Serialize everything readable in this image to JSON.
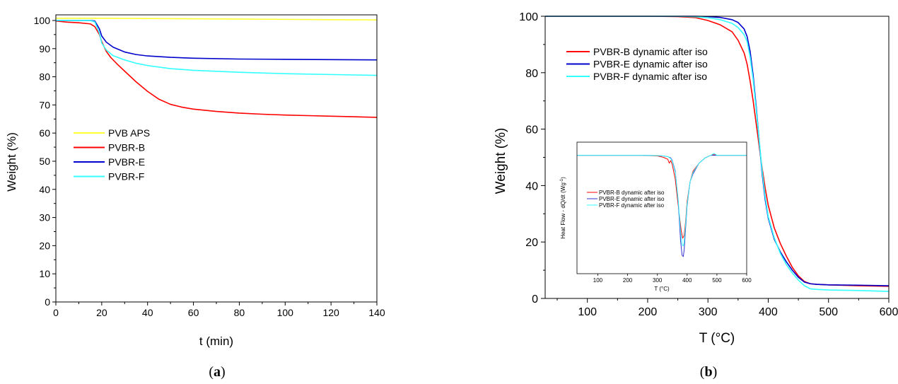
{
  "chart_data": [
    {
      "panel_label": {
        "open": "(",
        "letter": "a",
        "close": ")"
      },
      "type": "line",
      "xlabel": "t (min)",
      "ylabel": "Weight (%)",
      "xlim": [
        0,
        140
      ],
      "ylim": [
        0,
        102
      ],
      "xticks": [
        0,
        20,
        40,
        60,
        80,
        100,
        120,
        140
      ],
      "yticks": [
        0,
        10,
        20,
        30,
        40,
        50,
        60,
        70,
        80,
        90,
        100
      ],
      "legend_position": "center-left",
      "grid": false,
      "series": [
        {
          "name": "PVB APS",
          "color": "#ffff33",
          "x": [
            0,
            20,
            40,
            60,
            80,
            100,
            120,
            140
          ],
          "y": [
            100.8,
            100.8,
            100.7,
            100.6,
            100.5,
            100.4,
            100.3,
            100.2
          ]
        },
        {
          "name": "PVBR-B",
          "color": "#ff0000",
          "x": [
            0,
            5,
            10,
            15,
            17,
            19,
            20,
            22,
            24,
            27,
            30,
            35,
            40,
            45,
            50,
            55,
            60,
            70,
            80,
            90,
            100,
            110,
            120,
            130,
            140
          ],
          "y": [
            99.8,
            99.4,
            99.2,
            98.8,
            97.8,
            95.0,
            92.5,
            89.0,
            86.8,
            84.3,
            82.0,
            78.2,
            74.8,
            72.0,
            70.2,
            69.2,
            68.5,
            67.7,
            67.1,
            66.7,
            66.4,
            66.2,
            66.0,
            65.8,
            65.6
          ]
        },
        {
          "name": "PVBR-E",
          "color": "#0000cc",
          "x": [
            0,
            5,
            10,
            15,
            17,
            19,
            20,
            22,
            25,
            30,
            35,
            40,
            50,
            60,
            80,
            100,
            120,
            140
          ],
          "y": [
            100,
            100,
            100,
            100,
            99.8,
            97.0,
            94.5,
            92.3,
            90.5,
            88.8,
            87.9,
            87.4,
            86.9,
            86.6,
            86.3,
            86.2,
            86.1,
            86.0
          ]
        },
        {
          "name": "PVBR-F",
          "color": "#33ffff",
          "x": [
            0,
            5,
            10,
            15,
            17,
            19,
            20,
            22,
            25,
            30,
            35,
            40,
            50,
            60,
            80,
            100,
            120,
            140
          ],
          "y": [
            100,
            100,
            100,
            100,
            99.5,
            95.5,
            92.0,
            89.5,
            87.5,
            86.0,
            84.8,
            84.0,
            82.9,
            82.3,
            81.6,
            81.1,
            80.8,
            80.5
          ]
        }
      ]
    },
    {
      "panel_label": {
        "open": "(",
        "letter": "b",
        "close": ")"
      },
      "type": "line",
      "xlabel": "T (°C)",
      "ylabel": "Weight (%)",
      "xlim": [
        30,
        600
      ],
      "ylim": [
        0,
        100
      ],
      "xticks": [
        100,
        200,
        300,
        400,
        500,
        600
      ],
      "yticks": [
        0,
        20,
        40,
        60,
        80,
        100
      ],
      "legend_position": "top-left",
      "grid": false,
      "series": [
        {
          "name": "PVBR-B dynamic after iso",
          "color": "#ff0000",
          "x": [
            30,
            100,
            200,
            250,
            280,
            300,
            320,
            340,
            350,
            360,
            365,
            370,
            375,
            380,
            385,
            390,
            395,
            400,
            410,
            420,
            430,
            440,
            450,
            460,
            470,
            480,
            500,
            550,
            600
          ],
          "y": [
            100,
            100,
            100,
            99.9,
            99.5,
            98.5,
            97.0,
            94.5,
            91.5,
            87.0,
            83.0,
            77.0,
            70.0,
            62.0,
            54.0,
            46.0,
            39.0,
            33.0,
            25.0,
            19.5,
            15.0,
            11.0,
            8.0,
            6.0,
            5.2,
            5.0,
            4.8,
            4.5,
            4.3
          ]
        },
        {
          "name": "PVBR-E dynamic after iso",
          "color": "#0000cc",
          "x": [
            30,
            100,
            200,
            250,
            280,
            300,
            320,
            340,
            350,
            360,
            365,
            370,
            375,
            380,
            385,
            390,
            395,
            400,
            410,
            420,
            430,
            440,
            450,
            460,
            470,
            480,
            500,
            550,
            600
          ],
          "y": [
            100,
            100,
            100,
            100,
            100,
            99.9,
            99.6,
            98.8,
            97.8,
            95.5,
            92.8,
            87.5,
            79.0,
            68.0,
            56.0,
            44.0,
            35.0,
            28.5,
            21.0,
            16.5,
            13.0,
            10.0,
            7.5,
            5.8,
            5.2,
            5.0,
            4.8,
            4.7,
            4.5
          ]
        },
        {
          "name": "PVBR-F dynamic after iso",
          "color": "#33ffff",
          "x": [
            30,
            100,
            200,
            250,
            280,
            300,
            320,
            340,
            350,
            360,
            365,
            370,
            375,
            380,
            385,
            390,
            395,
            400,
            410,
            420,
            430,
            440,
            450,
            460,
            470,
            480,
            500,
            550,
            600
          ],
          "y": [
            100,
            100,
            100,
            100,
            99.8,
            99.5,
            98.8,
            97.5,
            96.0,
            93.5,
            91.0,
            85.5,
            77.5,
            67.0,
            56.0,
            45.0,
            36.0,
            29.0,
            21.5,
            16.0,
            12.0,
            9.0,
            6.5,
            4.5,
            3.4,
            3.2,
            3.0,
            2.8,
            2.5
          ]
        }
      ],
      "inset": {
        "type": "line",
        "xlabel": "T (°C)",
        "ylabel_html": {
          "main": "Heat Flow - dQ/dt (Wg",
          "sup": "-1",
          "close": ")"
        },
        "xlim": [
          30,
          600
        ],
        "ylim": [
          0,
          100
        ],
        "xticks": [
          100,
          200,
          300,
          400,
          500,
          600
        ],
        "legend_position": "center-left",
        "series": [
          {
            "name": "PVBR-B dynamic after iso",
            "color": "#ff0000",
            "x": [
              30,
              100,
              200,
              250,
              300,
              320,
              335,
              340,
              345,
              350,
              360,
              370,
              380,
              385,
              390,
              395,
              400,
              410,
              420,
              440,
              460,
              480,
              490,
              500,
              550,
              600
            ],
            "y": [
              90,
              90,
              90,
              90,
              89.5,
              88.5,
              87.0,
              84.0,
              86.0,
              83.0,
              72.0,
              52.0,
              33.0,
              27.0,
              29.0,
              40.0,
              55.0,
              70.0,
              78.0,
              84.0,
              88.0,
              90.0,
              90.5,
              90.0,
              90.0,
              90.0
            ]
          },
          {
            "name": "PVBR-E dynamic after iso",
            "color": "#3333cc",
            "x": [
              30,
              100,
              200,
              250,
              300,
              320,
              335,
              345,
              350,
              360,
              370,
              378,
              383,
              387,
              390,
              395,
              400,
              410,
              420,
              440,
              460,
              480,
              500,
              550,
              600
            ],
            "y": [
              90,
              90,
              90,
              90,
              89.8,
              89.5,
              89.0,
              88.0,
              86.0,
              78.0,
              55.0,
              25.0,
              14.0,
              13.0,
              18.0,
              35.0,
              52.0,
              70.0,
              76.0,
              84.0,
              88.0,
              90.0,
              90.0,
              90.0,
              90.0
            ]
          },
          {
            "name": "PVBR-F dynamic after iso",
            "color": "#33ffff",
            "x": [
              30,
              100,
              200,
              250,
              300,
              320,
              335,
              345,
              350,
              360,
              370,
              378,
              383,
              387,
              390,
              395,
              400,
              410,
              420,
              440,
              460,
              480,
              490,
              500,
              550,
              600
            ],
            "y": [
              90,
              90,
              90,
              90,
              89.8,
              89.5,
              89.0,
              87.5,
              85.5,
              77.0,
              56.0,
              32.0,
              22.0,
              21.0,
              24.0,
              38.0,
              53.0,
              70.0,
              77.0,
              84.0,
              88.0,
              90.0,
              91.5,
              90.0,
              90.0,
              90.0
            ]
          }
        ]
      }
    }
  ]
}
